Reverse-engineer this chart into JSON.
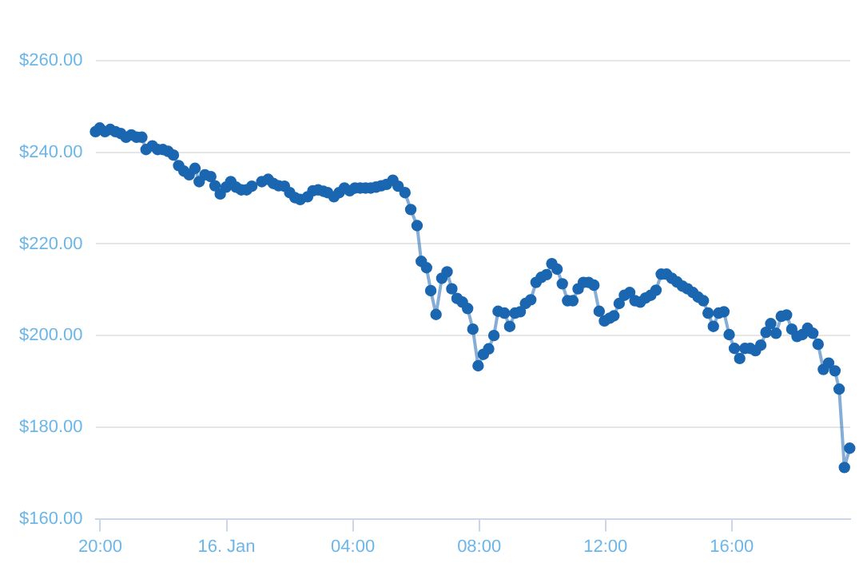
{
  "chart_data": {
    "type": "line",
    "color": "#1a66b0",
    "marker": "circle",
    "grid": "y",
    "legend": false,
    "xlim": [
      "--01-15T19:51",
      "--01-16T19:45"
    ],
    "xticks": [
      {
        "value": "--01-15T20:00",
        "label": "20:00"
      },
      {
        "value": "--01-16T00:00",
        "label": "16. Jan"
      },
      {
        "value": "--01-16T04:00",
        "label": "04:00"
      },
      {
        "value": "--01-16T08:00",
        "label": "08:00"
      },
      {
        "value": "--01-16T12:00",
        "label": "12:00"
      },
      {
        "value": "--01-16T16:00",
        "label": "16:00"
      }
    ],
    "ylim": [
      160,
      260
    ],
    "yticks": [
      {
        "value": 160,
        "label": "$160.00"
      },
      {
        "value": 180,
        "label": "$180.00"
      },
      {
        "value": 200,
        "label": "$200.00"
      },
      {
        "value": 220,
        "label": "$220.00"
      },
      {
        "value": 240,
        "label": "$240.00"
      },
      {
        "value": 260,
        "label": "$260.00"
      }
    ],
    "x": [
      "--01-15T19:51",
      "--01-15T19:59",
      "--01-15T20:09",
      "--01-15T20:19",
      "--01-15T20:29",
      "--01-15T20:39",
      "--01-15T20:49",
      "--01-15T20:59",
      "--01-15T21:09",
      "--01-15T21:19",
      "--01-15T21:27",
      "--01-15T21:39",
      "--01-15T21:49",
      "--01-15T21:59",
      "--01-15T22:09",
      "--01-15T22:19",
      "--01-15T22:29",
      "--01-15T22:39",
      "--01-15T22:49",
      "--01-15T23:00",
      "--01-15T23:08",
      "--01-15T23:19",
      "--01-15T23:30",
      "--01-15T23:38",
      "--01-15T23:48",
      "--01-15T23:59",
      "--01-16T00:08",
      "--01-16T00:18",
      "--01-16T00:28",
      "--01-16T00:38",
      "--01-16T00:48",
      "--01-16T01:07",
      "--01-16T01:19",
      "--01-16T01:29",
      "--01-16T01:39",
      "--01-16T01:50",
      "--01-16T02:00",
      "--01-16T02:10",
      "--01-16T02:20",
      "--01-16T02:34",
      "--01-16T02:44",
      "--01-16T02:54",
      "--01-16T03:04",
      "--01-16T03:12",
      "--01-16T03:24",
      "--01-16T03:34",
      "--01-16T03:44",
      "--01-16T03:54",
      "--01-16T04:04",
      "--01-16T04:14",
      "--01-16T04:24",
      "--01-16T04:34",
      "--01-16T04:44",
      "--01-16T04:54",
      "--01-16T05:04",
      "--01-16T05:16",
      "--01-16T05:26",
      "--01-16T05:39",
      "--01-16T05:50",
      "--01-16T06:02",
      "--01-16T06:10",
      "--01-16T06:20",
      "--01-16T06:28",
      "--01-16T06:38",
      "--01-16T06:49",
      "--01-16T06:59",
      "--01-16T07:08",
      "--01-16T07:18",
      "--01-16T07:28",
      "--01-16T07:38",
      "--01-16T07:48",
      "--01-16T07:58",
      "--01-16T08:08",
      "--01-16T08:18",
      "--01-16T08:28",
      "--01-16T08:36",
      "--01-16T08:48",
      "--01-16T08:58",
      "--01-16T09:08",
      "--01-16T09:18",
      "--01-16T09:28",
      "--01-16T09:38",
      "--01-16T09:48",
      "--01-16T09:58",
      "--01-16T10:08",
      "--01-16T10:18",
      "--01-16T10:28",
      "--01-16T10:38",
      "--01-16T10:48",
      "--01-16T10:58",
      "--01-16T11:08",
      "--01-16T11:18",
      "--01-16T11:28",
      "--01-16T11:38",
      "--01-16T11:48",
      "--01-16T11:58",
      "--01-16T12:08",
      "--01-16T12:16",
      "--01-16T12:26",
      "--01-16T12:36",
      "--01-16T12:46",
      "--01-16T12:56",
      "--01-16T13:06",
      "--01-16T13:16",
      "--01-16T13:26",
      "--01-16T13:36",
      "--01-16T13:46",
      "--01-16T13:56",
      "--01-16T14:06",
      "--01-16T14:16",
      "--01-16T14:26",
      "--01-16T14:36",
      "--01-16T14:46",
      "--01-16T14:56",
      "--01-16T15:06",
      "--01-16T15:15",
      "--01-16T15:25",
      "--01-16T15:35",
      "--01-16T15:45",
      "--01-16T15:55",
      "--01-16T16:05",
      "--01-16T16:15",
      "--01-16T16:25",
      "--01-16T16:35",
      "--01-16T16:45",
      "--01-16T16:55",
      "--01-16T17:05",
      "--01-16T17:14",
      "--01-16T17:24",
      "--01-16T17:34",
      "--01-16T17:44",
      "--01-16T17:54",
      "--01-16T18:04",
      "--01-16T18:14",
      "--01-16T18:24",
      "--01-16T18:34",
      "--01-16T18:44",
      "--01-16T18:54",
      "--01-16T19:04",
      "--01-16T19:16",
      "--01-16T19:24",
      "--01-16T19:34",
      "--01-16T19:44"
    ],
    "values": [
      244.5,
      245.3,
      244.5,
      245.0,
      244.5,
      244.1,
      243.3,
      243.8,
      243.3,
      243.3,
      240.6,
      241.4,
      240.6,
      240.6,
      240.2,
      239.4,
      237.1,
      235.9,
      235.1,
      236.5,
      233.6,
      235.1,
      234.7,
      232.7,
      230.9,
      232.4,
      233.6,
      232.4,
      231.8,
      231.8,
      232.6,
      233.6,
      234.1,
      233.2,
      232.7,
      232.6,
      231.2,
      230.1,
      229.7,
      230.3,
      231.6,
      231.8,
      231.5,
      231.2,
      230.3,
      231.2,
      232.2,
      231.6,
      232.2,
      232.2,
      232.2,
      232.2,
      232.4,
      232.7,
      233.0,
      233.9,
      232.6,
      231.2,
      227.5,
      224.0,
      216.2,
      214.8,
      209.8,
      204.6,
      212.5,
      213.9,
      210.2,
      208.1,
      207.3,
      205.9,
      201.4,
      193.4,
      195.9,
      197.1,
      200.0,
      205.3,
      204.9,
      202.0,
      204.9,
      205.2,
      207.0,
      207.8,
      211.6,
      212.7,
      213.3,
      215.7,
      214.5,
      211.3,
      207.6,
      207.6,
      210.2,
      211.6,
      211.6,
      211.0,
      205.3,
      203.2,
      203.8,
      204.3,
      207.0,
      208.8,
      209.4,
      207.6,
      207.3,
      208.2,
      208.8,
      209.9,
      213.4,
      213.4,
      212.5,
      211.7,
      210.8,
      210.2,
      209.4,
      208.4,
      207.6,
      204.9,
      202.0,
      204.9,
      205.2,
      200.2,
      197.2,
      195.0,
      197.2,
      197.2,
      196.7,
      197.9,
      200.7,
      202.6,
      200.5,
      204.2,
      204.5,
      201.4,
      199.8,
      200.2,
      201.6,
      200.5,
      198.1,
      192.6,
      194.0,
      192.3,
      188.3,
      171.2,
      175.4
    ]
  }
}
